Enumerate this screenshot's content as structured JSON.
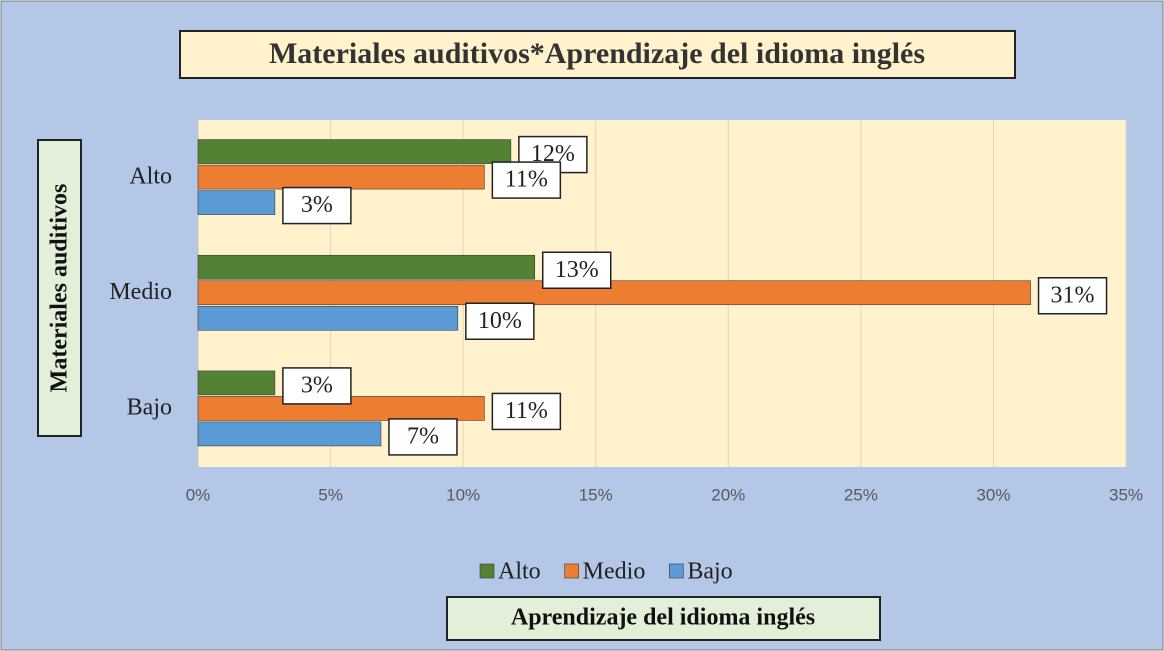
{
  "chart_data": {
    "type": "bar",
    "orientation": "horizontal",
    "title": "Materiales auditivos*Aprendizaje del idioma inglés",
    "x_label": "Aprendizaje del idioma inglés",
    "y_label": "Materiales auditivos",
    "categories": [
      "Alto",
      "Medio",
      "Bajo"
    ],
    "series": [
      {
        "name": "Alto",
        "color": "#548235",
        "values": [
          11.8,
          12.7,
          2.9
        ],
        "value_labels": [
          "12%",
          "13%",
          "3%"
        ]
      },
      {
        "name": "Medio",
        "color": "#ed7d31",
        "values": [
          10.8,
          31.4,
          10.8
        ],
        "value_labels": [
          "11%",
          "31%",
          "11%"
        ]
      },
      {
        "name": "Bajo",
        "color": "#5b9bd5",
        "values": [
          2.9,
          9.8,
          6.9
        ],
        "value_labels": [
          "3%",
          "10%",
          "7%"
        ]
      }
    ],
    "xlim": [
      0,
      35
    ],
    "xticks": [
      {
        "value": 0,
        "label": "0%"
      },
      {
        "value": 5,
        "label": "5%"
      },
      {
        "value": 10,
        "label": "10%"
      },
      {
        "value": 15,
        "label": "15%"
      },
      {
        "value": 20,
        "label": "20%"
      },
      {
        "value": 25,
        "label": "25%"
      },
      {
        "value": 30,
        "label": "30%"
      },
      {
        "value": 35,
        "label": "35%"
      }
    ],
    "grid": true,
    "legend": "bottom"
  }
}
